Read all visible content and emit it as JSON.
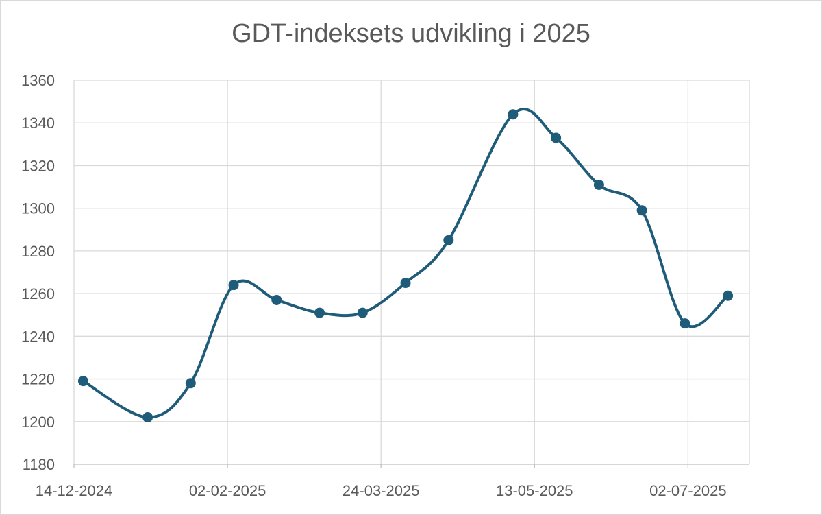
{
  "chart_data": {
    "type": "line",
    "title": "GDT-indeksets udvikling i 2025",
    "xlabel": "",
    "ylabel": "",
    "x_axis": {
      "type": "date",
      "range": [
        "2024-12-14",
        "2025-07-22"
      ],
      "tick_labels": [
        "14-12-2024",
        "02-02-2025",
        "24-03-2025",
        "13-05-2025",
        "02-07-2025"
      ],
      "tick_dates": [
        "2024-12-14",
        "2025-02-02",
        "2025-03-24",
        "2025-05-13",
        "2025-07-02"
      ]
    },
    "y_axis": {
      "range": [
        1180,
        1360
      ],
      "tick_labels": [
        "1180",
        "1200",
        "1220",
        "1240",
        "1260",
        "1280",
        "1300",
        "1320",
        "1340",
        "1360"
      ]
    },
    "ylim": [
      1180,
      1360
    ],
    "grid": true,
    "smooth": true,
    "series": [
      {
        "color": "#1f5c7a",
        "points": [
          {
            "x": "2024-12-17",
            "y": 1219
          },
          {
            "x": "2025-01-07",
            "y": 1202
          },
          {
            "x": "2025-01-21",
            "y": 1218
          },
          {
            "x": "2025-02-04",
            "y": 1264
          },
          {
            "x": "2025-02-18",
            "y": 1257
          },
          {
            "x": "2025-03-04",
            "y": 1251
          },
          {
            "x": "2025-03-18",
            "y": 1251
          },
          {
            "x": "2025-04-01",
            "y": 1265
          },
          {
            "x": "2025-04-15",
            "y": 1285
          },
          {
            "x": "2025-05-06",
            "y": 1344
          },
          {
            "x": "2025-05-20",
            "y": 1333
          },
          {
            "x": "2025-06-03",
            "y": 1311
          },
          {
            "x": "2025-06-17",
            "y": 1299
          },
          {
            "x": "2025-07-01",
            "y": 1246
          },
          {
            "x": "2025-07-15",
            "y": 1259
          }
        ]
      }
    ],
    "legend": "none"
  }
}
